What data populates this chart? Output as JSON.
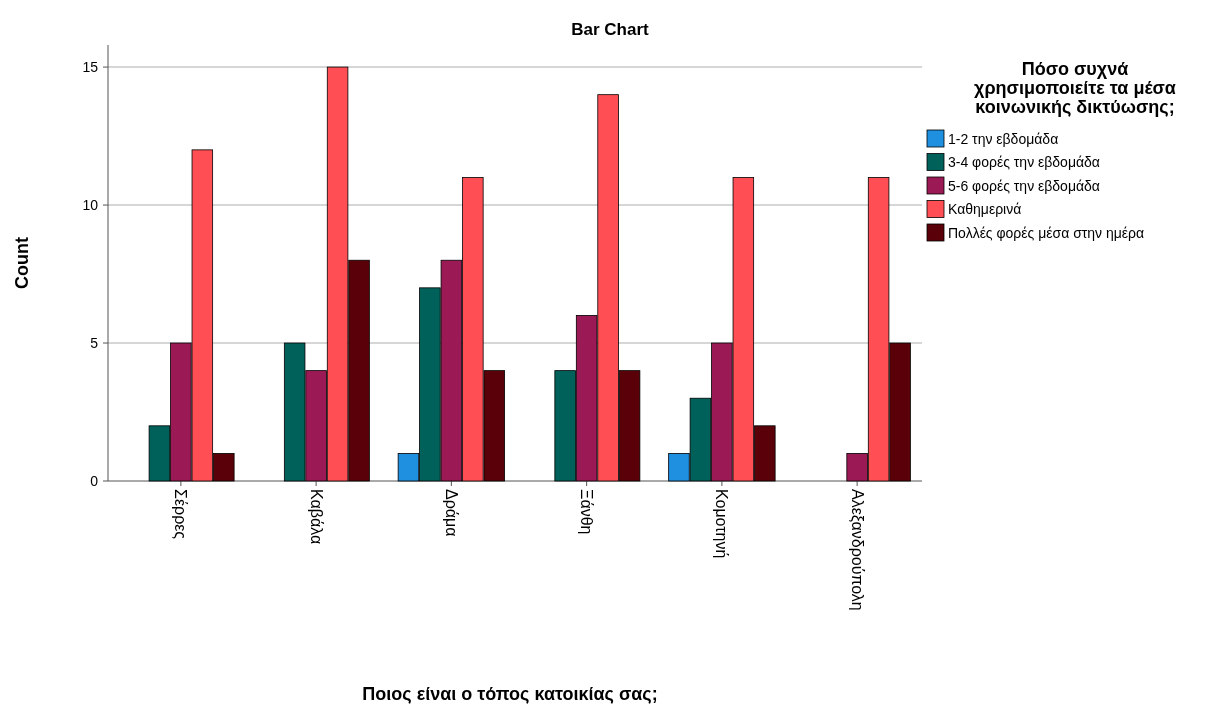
{
  "chart_data": {
    "type": "bar",
    "title": "Bar Chart",
    "xlabel": "Ποιος είναι ο τόπος κατοικίας σας;",
    "ylabel": "Count",
    "legend_title": "Πόσο συχνά χρησιμοποιείτε τα μέσα κοινωνικής δικτύωσης;",
    "categories": [
      "Σέρρες",
      "Καβάλα",
      "Δράμα",
      "Ξάνθη",
      "Κομοτηνή",
      "Αλεξανδρούπολη"
    ],
    "series": [
      {
        "name": "1-2 την εβδομάδα",
        "color": "#1f8fe0",
        "values": [
          null,
          null,
          1,
          null,
          1,
          null
        ]
      },
      {
        "name": "3-4 φορές την εβδομάδα",
        "color": "#00605a",
        "values": [
          2,
          5,
          7,
          4,
          3,
          null
        ]
      },
      {
        "name": "5-6 φορές την εβδομάδα",
        "color": "#9b1a55",
        "values": [
          5,
          4,
          8,
          6,
          5,
          1
        ]
      },
      {
        "name": "Καθημερινά",
        "color": "#ff4f55",
        "values": [
          12,
          15,
          11,
          14,
          11,
          11
        ]
      },
      {
        "name": "Πολλές φορές μέσα στην ημέρα",
        "color": "#590008",
        "values": [
          1,
          8,
          4,
          4,
          2,
          5
        ]
      }
    ],
    "ylim": [
      0,
      15.8
    ],
    "yticks": [
      0,
      5,
      10,
      15
    ],
    "grid": "y",
    "legend": "right"
  }
}
